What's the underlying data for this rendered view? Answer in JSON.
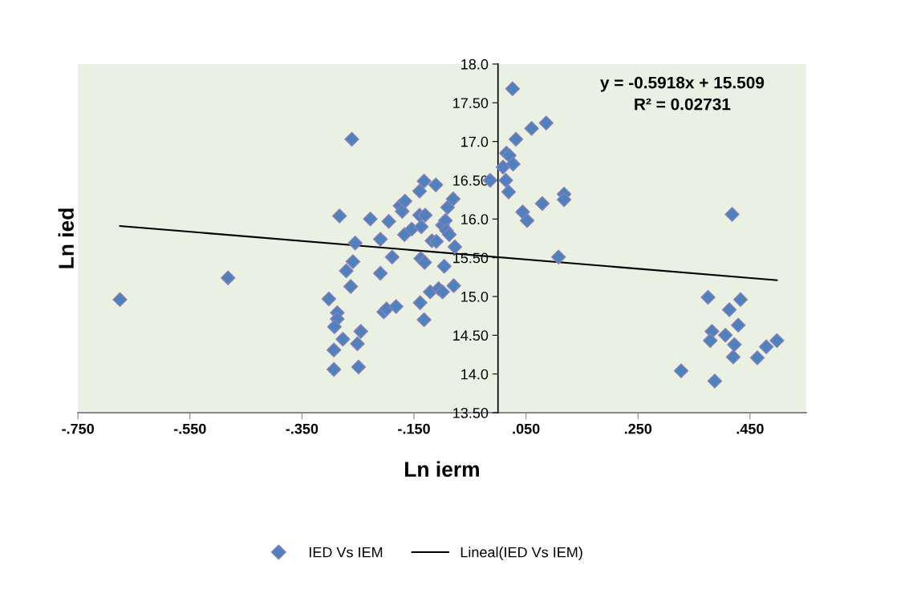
{
  "chart_data": {
    "type": "scatter",
    "xlabel": "Ln ierm",
    "ylabel": "Ln ied",
    "xlim": [
      -0.75,
      0.55
    ],
    "ylim": [
      13.5,
      18.0
    ],
    "xticks": [
      {
        "value": -0.75,
        "label": "-.750"
      },
      {
        "value": -0.55,
        "label": "-.550"
      },
      {
        "value": -0.35,
        "label": "-.350"
      },
      {
        "value": -0.15,
        "label": "-.150"
      },
      {
        "value": 0.05,
        "label": ".050"
      },
      {
        "value": 0.25,
        "label": ".250"
      },
      {
        "value": 0.45,
        "label": ".450"
      }
    ],
    "yticks": [
      {
        "value": 13.5,
        "label": "13.50"
      },
      {
        "value": 14.0,
        "label": "14.0"
      },
      {
        "value": 14.5,
        "label": "14.50"
      },
      {
        "value": 15.0,
        "label": "15.0"
      },
      {
        "value": 15.5,
        "label": "15.50"
      },
      {
        "value": 16.0,
        "label": "16.0"
      },
      {
        "value": 16.5,
        "label": "16.50"
      },
      {
        "value": 17.0,
        "label": "17.0"
      },
      {
        "value": 17.5,
        "label": "17.50"
      },
      {
        "value": 18.0,
        "label": "18.0"
      }
    ],
    "grid": false,
    "legend": "bottom",
    "annotations": [
      "y = -0.5918x + 15.509",
      "R² = 0.02731"
    ],
    "series": [
      {
        "name": "IED Vs IEM",
        "marker": "diamond",
        "color": "#4f81bd",
        "x": [
          -0.675,
          -0.482,
          -0.261,
          -0.283,
          -0.228,
          -0.195,
          -0.255,
          -0.21,
          -0.189,
          -0.259,
          -0.271,
          -0.21,
          -0.263,
          -0.302,
          -0.287,
          -0.287,
          -0.292,
          -0.277,
          -0.293,
          -0.251,
          -0.245,
          -0.293,
          -0.249,
          -0.204,
          -0.199,
          -0.182,
          -0.175,
          -0.171,
          -0.166,
          -0.167,
          -0.154,
          -0.14,
          -0.132,
          -0.14,
          -0.13,
          -0.137,
          -0.138,
          -0.131,
          -0.139,
          -0.132,
          -0.121,
          -0.111,
          -0.118,
          -0.11,
          -0.106,
          -0.099,
          -0.099,
          -0.094,
          -0.092,
          -0.087,
          -0.09,
          -0.08,
          -0.096,
          -0.077,
          -0.079,
          -0.014,
          0.026,
          0.015,
          0.02,
          0.009,
          0.027,
          0.014,
          0.019,
          0.032,
          0.06,
          0.086,
          0.044,
          0.052,
          0.079,
          0.118,
          0.118,
          0.108,
          0.418,
          0.375,
          0.433,
          0.413,
          0.382,
          0.429,
          0.379,
          0.406,
          0.422,
          0.42,
          0.463,
          0.479,
          0.498,
          0.327,
          0.387
        ],
        "values": [
          14.96,
          15.24,
          17.03,
          16.04,
          16.0,
          15.97,
          15.69,
          15.74,
          15.51,
          15.45,
          15.33,
          15.3,
          15.13,
          14.97,
          14.79,
          14.71,
          14.61,
          14.45,
          14.31,
          14.39,
          14.55,
          14.06,
          14.09,
          14.8,
          14.84,
          14.87,
          16.17,
          16.1,
          16.23,
          15.8,
          15.87,
          16.36,
          16.49,
          16.05,
          16.05,
          15.9,
          15.49,
          15.44,
          14.92,
          14.7,
          15.06,
          16.44,
          15.72,
          15.71,
          15.1,
          15.06,
          15.92,
          15.98,
          15.85,
          15.8,
          16.15,
          16.26,
          15.39,
          15.64,
          15.14,
          16.5,
          17.68,
          16.85,
          16.82,
          16.67,
          16.71,
          16.5,
          16.35,
          17.03,
          17.17,
          17.24,
          16.09,
          15.98,
          16.2,
          16.32,
          16.25,
          15.51,
          16.06,
          14.99,
          14.96,
          14.83,
          14.55,
          14.63,
          14.43,
          14.5,
          14.38,
          14.22,
          14.21,
          14.35,
          14.43,
          14.04,
          13.91
        ]
      },
      {
        "name": "Lineal(IED Vs IEM)",
        "type": "line",
        "color": "#000000",
        "x": [
          -0.675,
          0.498
        ],
        "values": [
          15.91,
          15.21
        ]
      }
    ]
  }
}
